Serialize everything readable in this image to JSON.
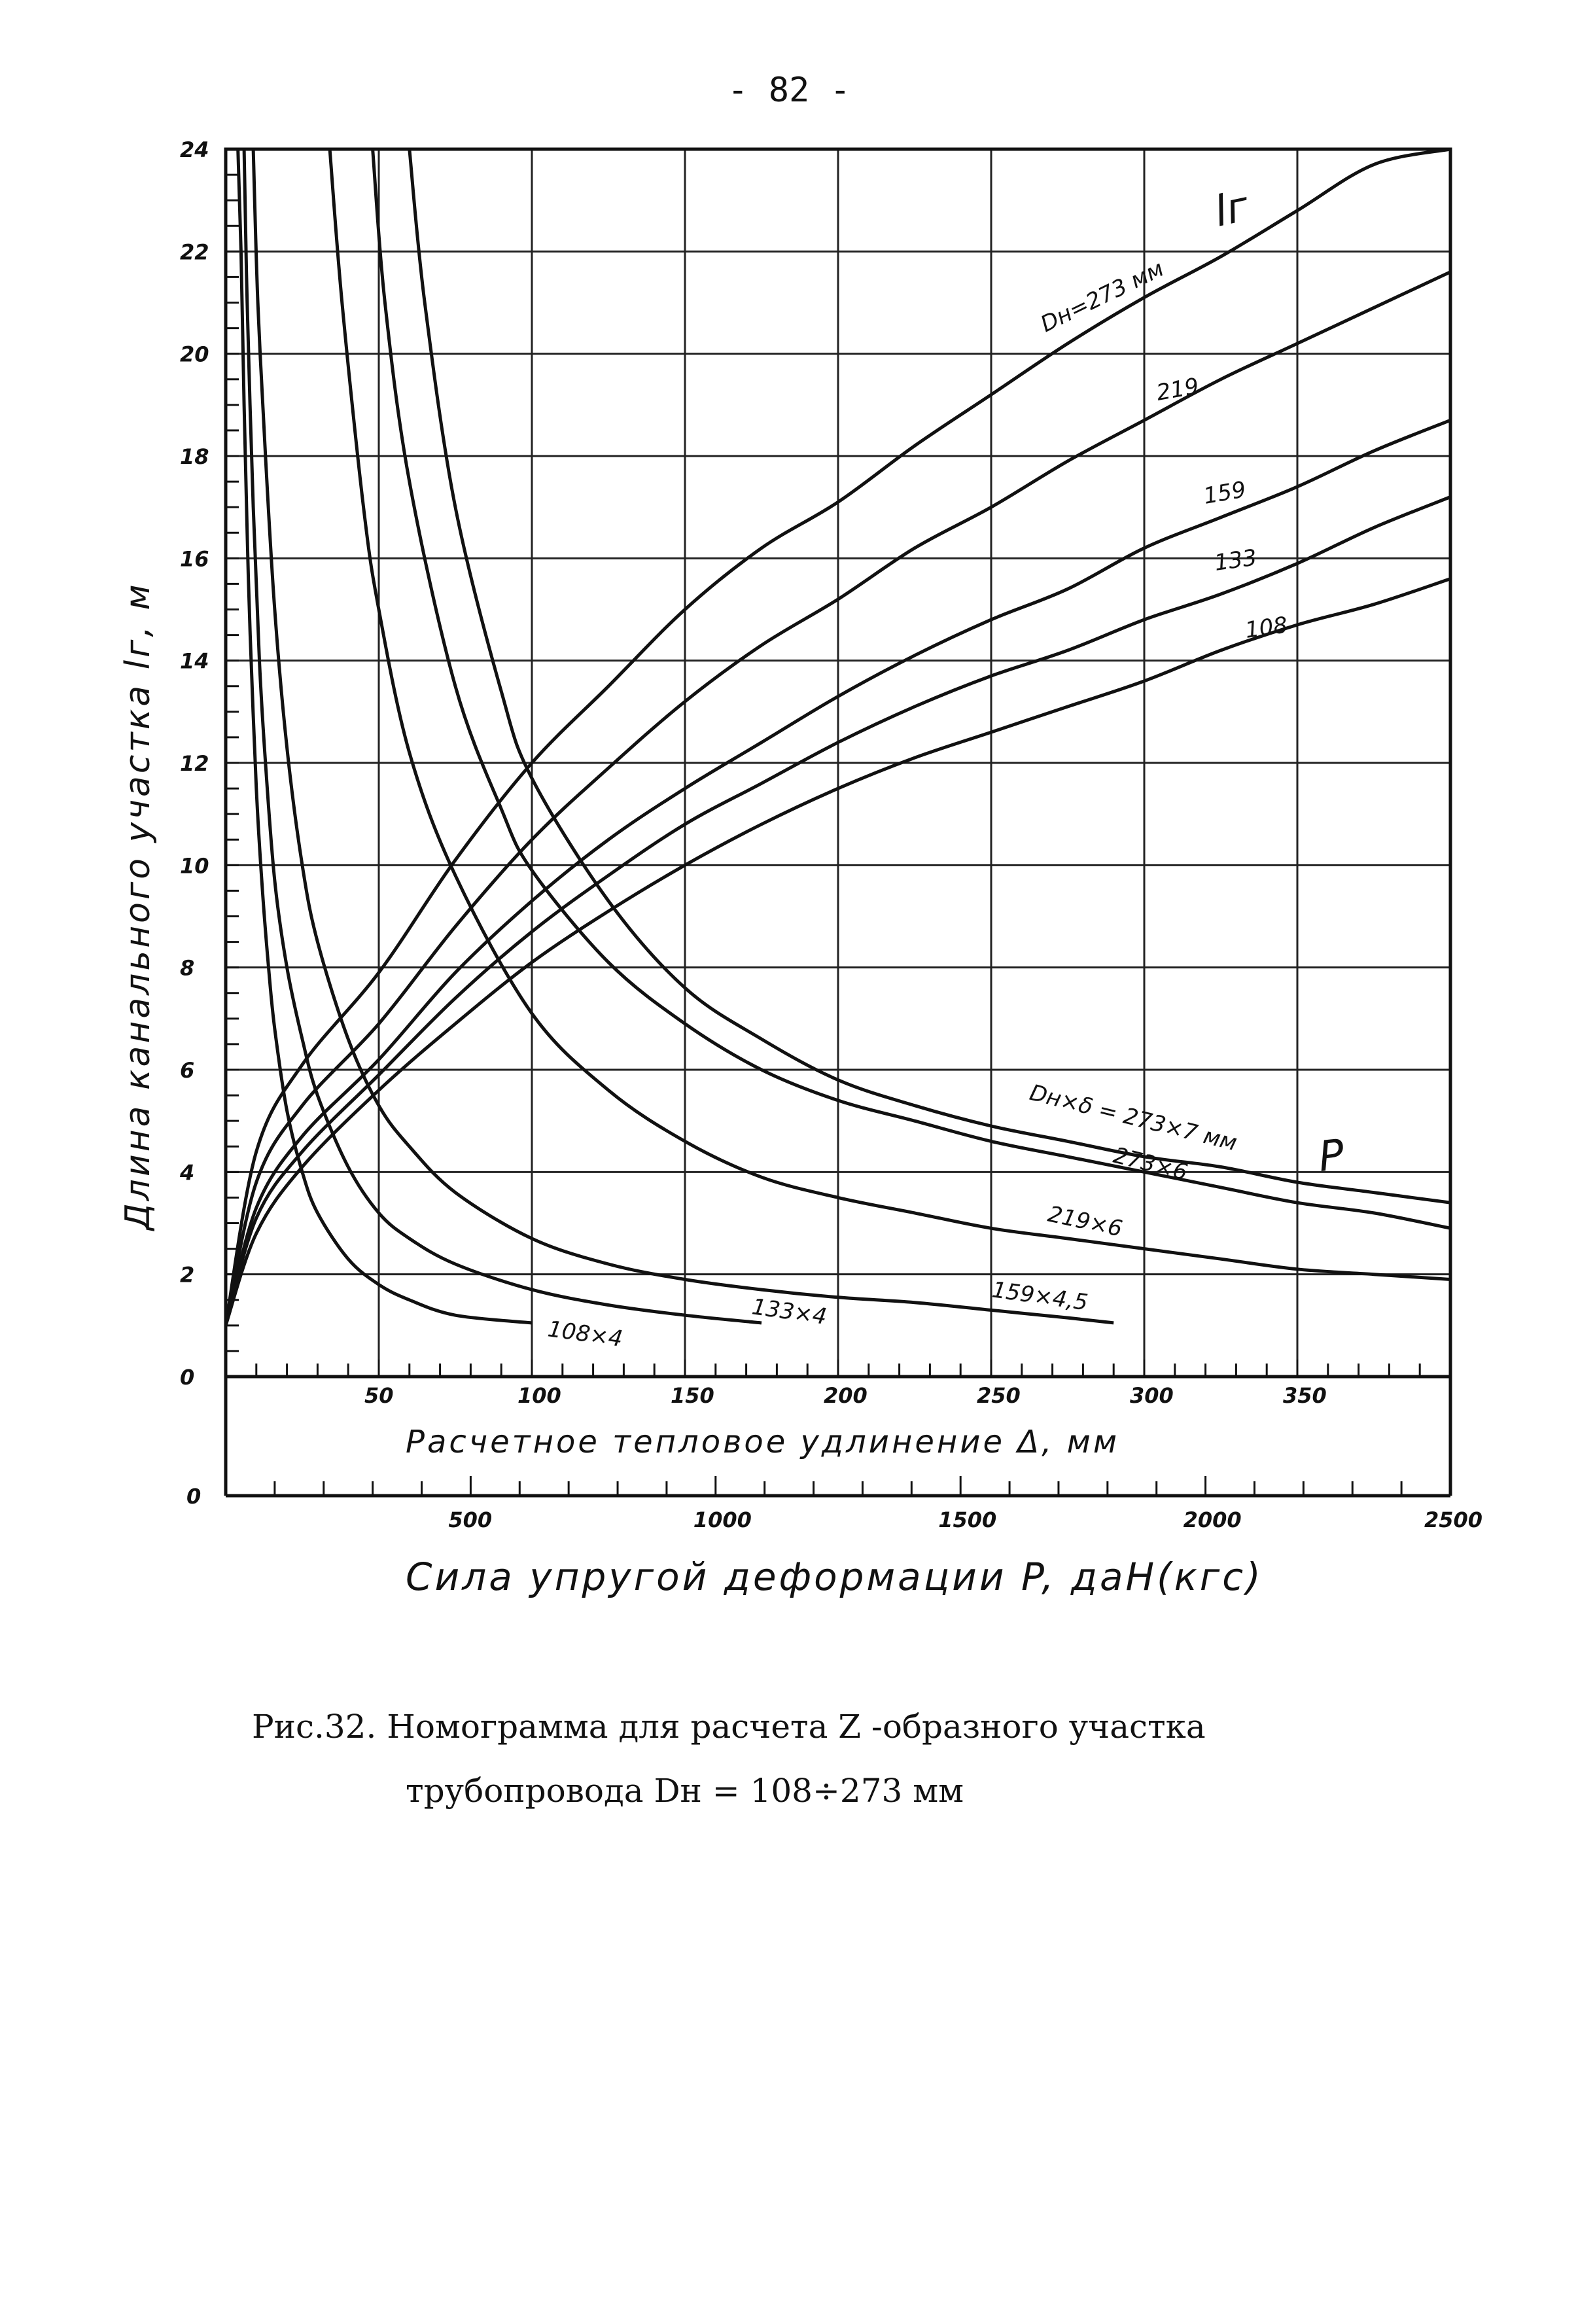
{
  "page": {
    "number": "- 82 -"
  },
  "chart_data": {
    "type": "line",
    "title": "",
    "xlabel": "Расчетное тепловое удлинение Δ, мм",
    "x2label": "Сила упругой деформации P, даН(кгс)",
    "ylabel": "Длина канального участка lг, м",
    "xlim": [
      0,
      400
    ],
    "x2lim": [
      0,
      2500
    ],
    "ylim": [
      0,
      24
    ],
    "grid": true,
    "x_ticks": [
      {
        "value": 50,
        "label": "50"
      },
      {
        "value": 100,
        "label": "100"
      },
      {
        "value": 150,
        "label": "150"
      },
      {
        "value": 200,
        "label": "200"
      },
      {
        "value": 250,
        "label": "250"
      },
      {
        "value": 300,
        "label": "300"
      },
      {
        "value": 350,
        "label": "350"
      }
    ],
    "x2_ticks": [
      {
        "value": 0,
        "label": "0"
      },
      {
        "value": 500,
        "label": "500"
      },
      {
        "value": 1000,
        "label": "1000"
      },
      {
        "value": 1500,
        "label": "1500"
      },
      {
        "value": 2000,
        "label": "2000"
      },
      {
        "value": 2500,
        "label": "2500"
      }
    ],
    "y_ticks": [
      {
        "value": 0,
        "label": "0"
      },
      {
        "value": 2,
        "label": "2"
      },
      {
        "value": 4,
        "label": "4"
      },
      {
        "value": 6,
        "label": "6"
      },
      {
        "value": 8,
        "label": "8"
      },
      {
        "value": 10,
        "label": "10"
      },
      {
        "value": 12,
        "label": "12"
      },
      {
        "value": 14,
        "label": "14"
      },
      {
        "value": 16,
        "label": "16"
      },
      {
        "value": 18,
        "label": "18"
      },
      {
        "value": 20,
        "label": "20"
      },
      {
        "value": 22,
        "label": "22"
      },
      {
        "value": 24,
        "label": "24"
      }
    ],
    "series_l": [
      {
        "name": "Dн=273 мм",
        "x": [
          0,
          10,
          25,
          50,
          75,
          100,
          125,
          150,
          175,
          200,
          225,
          250,
          275,
          300,
          325,
          350,
          375,
          400
        ],
        "y": [
          1,
          4.4,
          6.1,
          7.9,
          10.1,
          12,
          13.5,
          15,
          16.2,
          17.1,
          18.2,
          19.2,
          20.2,
          21.1,
          21.9,
          22.8,
          23.7,
          24.7
        ]
      },
      {
        "name": "219",
        "x": [
          0,
          10,
          25,
          50,
          75,
          100,
          125,
          150,
          175,
          200,
          225,
          250,
          275,
          300,
          325,
          350,
          375,
          400
        ],
        "y": [
          1,
          3.8,
          5.3,
          6.9,
          8.8,
          10.5,
          11.9,
          13.2,
          14.3,
          15.2,
          16.2,
          17,
          17.9,
          18.7,
          19.5,
          20.2,
          20.9,
          21.6
        ]
      },
      {
        "name": "159",
        "x": [
          0,
          10,
          25,
          50,
          75,
          100,
          125,
          150,
          175,
          200,
          225,
          250,
          275,
          300,
          325,
          350,
          375,
          400
        ],
        "y": [
          1,
          3.3,
          4.7,
          6.2,
          7.9,
          9.3,
          10.5,
          11.5,
          12.4,
          13.3,
          14.1,
          14.8,
          15.4,
          16.2,
          16.8,
          17.4,
          18.1,
          18.7
        ]
      },
      {
        "name": "133",
        "x": [
          0,
          10,
          25,
          50,
          75,
          100,
          125,
          150,
          175,
          200,
          225,
          250,
          275,
          300,
          325,
          350,
          375,
          400
        ],
        "y": [
          1,
          3.1,
          4.4,
          5.9,
          7.4,
          8.7,
          9.8,
          10.8,
          11.6,
          12.4,
          13.1,
          13.7,
          14.2,
          14.8,
          15.3,
          15.9,
          16.6,
          17.2
        ]
      },
      {
        "name": "108",
        "x": [
          0,
          10,
          25,
          50,
          75,
          100,
          125,
          150,
          175,
          200,
          225,
          250,
          275,
          300,
          325,
          350,
          375,
          400
        ],
        "y": [
          1,
          2.8,
          4.1,
          5.6,
          6.9,
          8.1,
          9.1,
          10,
          10.8,
          11.5,
          12.1,
          12.6,
          13.1,
          13.6,
          14.2,
          14.7,
          15.1,
          15.6
        ]
      }
    ],
    "series_p": [
      {
        "name": "Dн×δ = 273×7 мм",
        "x": [
          60,
          65,
          75,
          90,
          100,
          125,
          150,
          175,
          200,
          225,
          250,
          275,
          300,
          325,
          350,
          375,
          400
        ],
        "y": [
          24,
          21,
          17,
          13.4,
          11.7,
          9.3,
          7.6,
          6.6,
          5.8,
          5.3,
          4.9,
          4.6,
          4.3,
          4.1,
          3.8,
          3.6,
          3.4
        ]
      },
      {
        "name": "273×6",
        "x": [
          48,
          52,
          60,
          75,
          90,
          100,
          125,
          150,
          175,
          200,
          225,
          250,
          275,
          300,
          325,
          350,
          375,
          400
        ],
        "y": [
          24,
          21,
          17.5,
          13.5,
          11.1,
          9.9,
          8.1,
          6.9,
          6,
          5.4,
          5,
          4.6,
          4.3,
          4,
          3.7,
          3.4,
          3.2,
          2.9
        ]
      },
      {
        "name": "219×6",
        "x": [
          34,
          38,
          45,
          50,
          60,
          75,
          100,
          125,
          150,
          175,
          200,
          225,
          250,
          275,
          300,
          325,
          350,
          375,
          400
        ],
        "y": [
          24,
          21,
          17,
          15,
          12.2,
          9.8,
          7.1,
          5.6,
          4.6,
          3.9,
          3.5,
          3.2,
          2.9,
          2.7,
          2.5,
          2.3,
          2.1,
          2,
          1.9
        ]
      },
      {
        "name": "159×4,5",
        "x": [
          9,
          10.5,
          13,
          16,
          20,
          25,
          30,
          40,
          50,
          60,
          75,
          100,
          125,
          150,
          175,
          200,
          225,
          250,
          275,
          290
        ],
        "y": [
          24,
          21,
          18,
          15,
          12.3,
          10,
          8.5,
          6.6,
          5.3,
          4.5,
          3.6,
          2.7,
          2.2,
          1.9,
          1.7,
          1.55,
          1.45,
          1.3,
          1.15,
          1.05
        ]
      },
      {
        "name": "133×4",
        "x": [
          6,
          7,
          9,
          11,
          13,
          16,
          20,
          25,
          30,
          40,
          50,
          60,
          75,
          100,
          125,
          150,
          175
        ],
        "y": [
          24,
          21,
          17,
          14,
          12,
          9.7,
          8,
          6.6,
          5.5,
          4.1,
          3.2,
          2.7,
          2.2,
          1.7,
          1.4,
          1.2,
          1.05
        ]
      },
      {
        "name": "108×4",
        "x": [
          4,
          5,
          6,
          7,
          8,
          10,
          12,
          14,
          16,
          20,
          25,
          30,
          40,
          50,
          60,
          75,
          100
        ],
        "y": [
          24,
          22,
          19,
          16.5,
          14.5,
          11.5,
          9.5,
          8,
          6.8,
          5.2,
          4,
          3.2,
          2.3,
          1.8,
          1.5,
          1.2,
          1.05
        ]
      }
    ],
    "labels": {
      "lg_symbol": "lг",
      "p_symbol": "P",
      "l_273": "Dн=273 мм",
      "l_219": "219",
      "l_159": "159",
      "l_133": "133",
      "l_108": "108",
      "p_273x7": "Dн×δ = 273×7 мм",
      "p_273x6": "273×6",
      "p_219x6": "219×6",
      "p_159x45": "159×4,5",
      "p_133x4": "133×4",
      "p_108x4": "108×4"
    }
  },
  "caption": {
    "line1": "Рис.32. Номограмма для расчета Z -образного участка",
    "line2": "трубопровода Dн = 108÷273 мм"
  }
}
